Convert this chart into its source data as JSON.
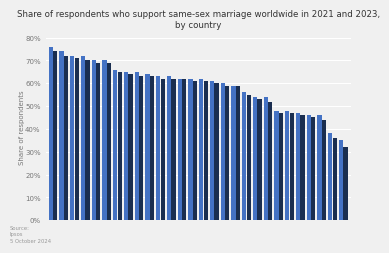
{
  "title": "Share of respondents who support same-sex marriage worldwide in 2021 and 2023,\nby country",
  "ylabel": "Share of respondents",
  "ylim": [
    0,
    0.82
  ],
  "yticks": [
    0,
    0.1,
    0.2,
    0.3,
    0.4,
    0.5,
    0.6,
    0.7,
    0.8
  ],
  "ytick_labels": [
    "0%",
    "10%",
    "20%",
    "30%",
    "40%",
    "50%",
    "60%",
    "70%",
    "80%"
  ],
  "color_2023": "#4472c4",
  "color_2021": "#1a2e50",
  "bg_color": "#f0f0f0",
  "grid_color": "#ffffff",
  "source_text": "Source:\nIpsos\n5 October 2024",
  "values_2023": [
    0.76,
    0.74,
    0.72,
    0.72,
    0.7,
    0.7,
    0.66,
    0.65,
    0.65,
    0.64,
    0.63,
    0.63,
    0.62,
    0.62,
    0.62,
    0.61,
    0.6,
    0.59,
    0.56,
    0.54,
    0.54,
    0.48,
    0.48,
    0.47,
    0.46,
    0.46,
    0.38,
    0.35
  ],
  "values_2021": [
    0.74,
    0.72,
    0.71,
    0.7,
    0.69,
    0.69,
    0.65,
    0.64,
    0.63,
    0.63,
    0.62,
    0.62,
    0.62,
    0.61,
    0.61,
    0.6,
    0.59,
    0.59,
    0.55,
    0.53,
    0.52,
    0.47,
    0.47,
    0.46,
    0.45,
    0.44,
    0.36,
    0.32
  ]
}
